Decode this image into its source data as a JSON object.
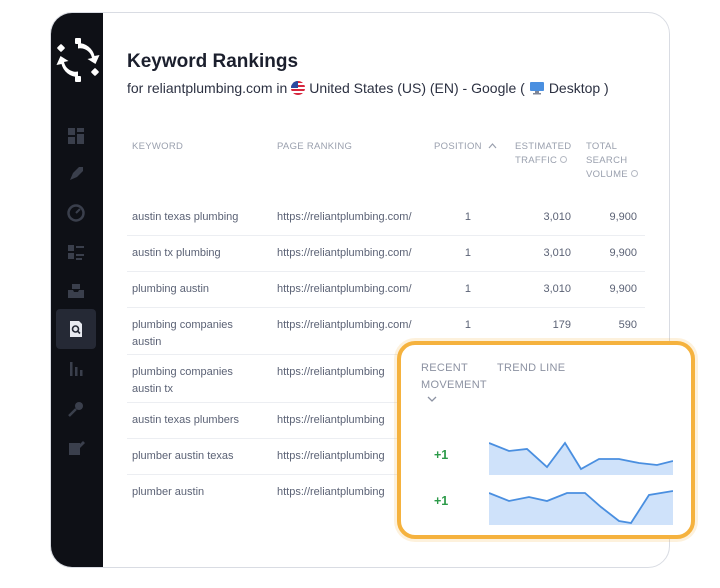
{
  "header": {
    "title": "Keyword Rankings",
    "sub_prefix": "for reliantplumbing.com in",
    "country": "United States (US) (EN) - Google (",
    "device": "Desktop )"
  },
  "columns": {
    "keyword": "KEYWORD",
    "page_ranking": "PAGE RANKING",
    "position": "POSITION",
    "traffic_1": "ESTIMATED",
    "traffic_2": "TRAFFIC",
    "volume_1": "TOTAL",
    "volume_2": "SEARCH",
    "volume_3": "VOLUME"
  },
  "rows": [
    {
      "kw1": "austin texas plumbing",
      "kw2": "",
      "url": "https://reliantplumbing.com/",
      "pos": "1",
      "traffic": "3,010",
      "volume": "9,900"
    },
    {
      "kw1": "austin tx plumbing",
      "kw2": "",
      "url": "https://reliantplumbing.com/",
      "pos": "1",
      "traffic": "3,010",
      "volume": "9,900"
    },
    {
      "kw1": "plumbing austin",
      "kw2": "",
      "url": "https://reliantplumbing.com/",
      "pos": "1",
      "traffic": "3,010",
      "volume": "9,900"
    },
    {
      "kw1": "plumbing companies",
      "kw2": "austin",
      "url": "https://reliantplumbing.com/",
      "pos": "1",
      "traffic": "179",
      "volume": "590"
    },
    {
      "kw1": "plumbing companies",
      "kw2": "austin tx",
      "url": "https://reliantplumbing",
      "pos": "",
      "traffic": "",
      "volume": ""
    },
    {
      "kw1": "austin texas plumbers",
      "kw2": "",
      "url": "https://reliantplumbing",
      "pos": "",
      "traffic": "",
      "volume": ""
    },
    {
      "kw1": "plumber austin texas",
      "kw2": "",
      "url": "https://reliantplumbing",
      "pos": "",
      "traffic": "",
      "volume": ""
    },
    {
      "kw1": "plumber austin",
      "kw2": "",
      "url": "https://reliantplumbing",
      "pos": "",
      "traffic": "",
      "volume": ""
    }
  ],
  "popup": {
    "recent_1": "RECENT",
    "recent_2": "MOVEMENT",
    "trend": "TREND LINE",
    "items": [
      {
        "movement": "+1"
      },
      {
        "movement": "+1"
      }
    ]
  },
  "colors": {
    "sidebar": "#0e1016",
    "accent_orange": "#f5b23e",
    "positive_green": "#2c9a49",
    "trend_line": "#4a8fe0",
    "trend_fill": "#cfe2fa"
  },
  "icons": {
    "logo": "gear-sync-logo",
    "nav": [
      "dashboard-icon",
      "rocket-icon",
      "gauge-icon",
      "list-icon",
      "inbox-icon",
      "search-doc-icon",
      "bar-chart-icon",
      "key-icon",
      "edit-icon"
    ],
    "flag": "us-flag-icon",
    "device": "monitor-icon"
  }
}
